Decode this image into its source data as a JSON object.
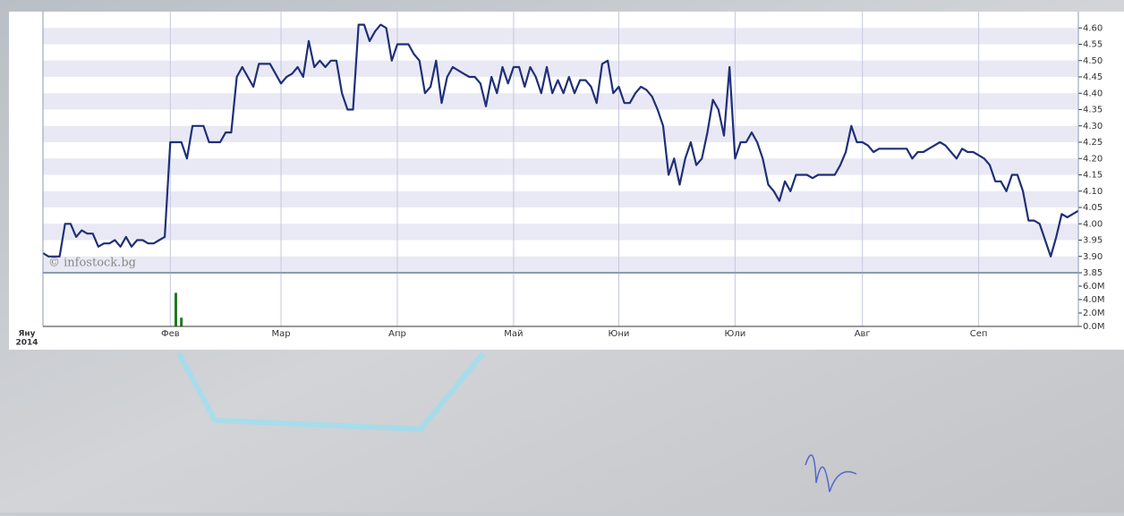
{
  "chart_data": [
    {
      "type": "line",
      "watermark": "© infostock.bg",
      "year": "2014",
      "xlim": [
        0,
        187
      ],
      "xticks": [
        {
          "value": 0,
          "label": "Яну"
        },
        {
          "value": 23,
          "label": "Фев"
        },
        {
          "value": 43,
          "label": "Мар"
        },
        {
          "value": 64,
          "label": "Апр"
        },
        {
          "value": 85,
          "label": "Май"
        },
        {
          "value": 104,
          "label": "Юни"
        },
        {
          "value": 125,
          "label": "Юли"
        },
        {
          "value": 148,
          "label": "Авг"
        },
        {
          "value": 169,
          "label": "Сеп"
        }
      ],
      "ylim": [
        3.85,
        4.65
      ],
      "yticks": [
        3.85,
        {
          "value": 3.9,
          "label": "3.90"
        },
        3.95,
        {
          "value": 4.0,
          "label": "4.00"
        },
        4.05,
        {
          "value": 4.1,
          "label": "4.10"
        },
        4.15,
        {
          "value": 4.2,
          "label": "4.20"
        },
        4.25,
        {
          "value": 4.3,
          "label": "4.30"
        },
        4.35,
        {
          "value": 4.4,
          "label": "4.40"
        },
        4.45,
        {
          "value": 4.5,
          "label": "4.50"
        },
        4.55,
        {
          "value": 4.6,
          "label": "4.60"
        }
      ],
      "grid": true,
      "series": [
        {
          "color": "#1f2f78",
          "values": [
            3.91,
            3.9,
            3.9,
            3.9,
            4.0,
            4.0,
            3.96,
            3.98,
            3.97,
            3.97,
            3.93,
            3.94,
            3.94,
            3.95,
            3.93,
            3.96,
            3.93,
            3.95,
            3.95,
            3.94,
            3.94,
            3.95,
            3.96,
            4.25,
            4.25,
            4.25,
            4.2,
            4.3,
            4.3,
            4.3,
            4.25,
            4.25,
            4.25,
            4.28,
            4.28,
            4.45,
            4.48,
            4.45,
            4.42,
            4.49,
            4.49,
            4.49,
            4.46,
            4.43,
            4.45,
            4.46,
            4.48,
            4.45,
            4.56,
            4.48,
            4.5,
            4.48,
            4.5,
            4.5,
            4.4,
            4.35,
            4.35,
            4.61,
            4.61,
            4.56,
            4.59,
            4.61,
            4.6,
            4.5,
            4.55,
            4.55,
            4.55,
            4.52,
            4.5,
            4.4,
            4.42,
            4.5,
            4.37,
            4.45,
            4.48,
            4.47,
            4.46,
            4.45,
            4.45,
            4.43,
            4.36,
            4.45,
            4.4,
            4.48,
            4.43,
            4.48,
            4.48,
            4.42,
            4.48,
            4.45,
            4.4,
            4.48,
            4.4,
            4.44,
            4.4,
            4.45,
            4.4,
            4.44,
            4.44,
            4.42,
            4.37,
            4.49,
            4.5,
            4.4,
            4.42,
            4.37,
            4.37,
            4.4,
            4.42,
            4.41,
            4.39,
            4.35,
            4.3,
            4.15,
            4.2,
            4.12,
            4.2,
            4.25,
            4.18,
            4.2,
            4.28,
            4.38,
            4.35,
            4.27,
            4.48,
            4.2,
            4.25,
            4.25,
            4.28,
            4.25,
            4.2,
            4.12,
            4.1,
            4.07,
            4.13,
            4.1,
            4.15,
            4.15,
            4.15,
            4.14,
            4.15,
            4.15,
            4.15,
            4.15,
            4.18,
            4.22,
            4.3,
            4.25,
            4.25,
            4.24,
            4.22,
            4.23,
            4.23,
            4.23,
            4.23,
            4.23,
            4.23,
            4.2,
            4.22,
            4.22,
            4.23,
            4.24,
            4.25,
            4.24,
            4.22,
            4.2,
            4.23,
            4.22,
            4.22,
            4.21,
            4.2,
            4.18,
            4.13,
            4.13,
            4.1,
            4.15,
            4.15,
            4.1,
            4.01,
            4.01,
            4.0,
            3.95,
            3.9,
            3.96,
            4.03,
            4.02,
            4.03,
            4.04
          ]
        }
      ]
    },
    {
      "type": "bar",
      "xlim": [
        0,
        187
      ],
      "ylim": [
        0,
        8
      ],
      "yticks": [
        {
          "value": 0,
          "label": "0.0M"
        },
        {
          "value": 2,
          "label": "2.0M"
        },
        {
          "value": 4,
          "label": "4.0M"
        },
        {
          "value": 6,
          "label": "6.0M"
        }
      ],
      "series": [
        {
          "color": "#1e7a1e",
          "x": [
            24,
            25
          ],
          "values": [
            5.0,
            1.3
          ]
        }
      ]
    }
  ]
}
